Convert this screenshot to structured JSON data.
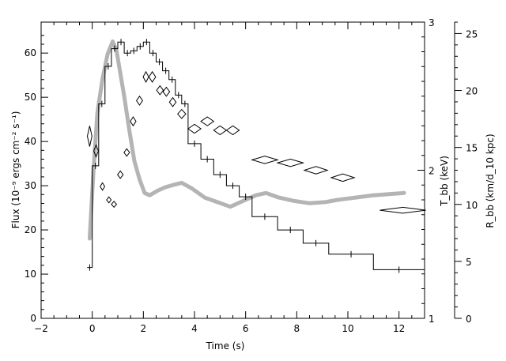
{
  "chart_data": {
    "type": "line",
    "title": "",
    "xlabel": "Time (s)",
    "ylabel": "Flux (10⁻⁹ ergs cm⁻² s⁻¹)",
    "ylabel_right_inner": "T_bb (keV)",
    "ylabel_right_outer": "R_bb (km/d_10 kpc)",
    "xlim": [
      -2,
      13
    ],
    "ylim": [
      0,
      67
    ],
    "y2lim": [
      1,
      3
    ],
    "y3lim": [
      0,
      26
    ],
    "x_ticks": [
      "−2",
      "0",
      "2",
      "4",
      "6",
      "8",
      "10",
      "12"
    ],
    "y_ticks": [
      "0",
      "10",
      "20",
      "30",
      "40",
      "50",
      "60"
    ],
    "y2_ticks": [
      "1",
      "2",
      "3"
    ],
    "y3_ticks": [
      "0",
      "5",
      "10",
      "15",
      "20",
      "25"
    ],
    "grid": false,
    "series": [
      {
        "style": "histogram-step",
        "axis": "flux",
        "color": "#000000",
        "points": [
          {
            "x": -0.2,
            "x_end": 0.0,
            "y": 11.5
          },
          {
            "x": 0.0,
            "x_end": 0.25,
            "y": 34.5
          },
          {
            "x": 0.25,
            "x_end": 0.5,
            "y": 48.5
          },
          {
            "x": 0.5,
            "x_end": 0.75,
            "y": 57.0
          },
          {
            "x": 0.75,
            "x_end": 1.0,
            "y": 61.0
          },
          {
            "x": 1.0,
            "x_end": 1.25,
            "y": 62.5
          },
          {
            "x": 1.25,
            "x_end": 1.5,
            "y": 60.0
          },
          {
            "x": 1.5,
            "x_end": 1.75,
            "y": 60.5
          },
          {
            "x": 1.75,
            "x_end": 2.0,
            "y": 61.5
          },
          {
            "x": 2.0,
            "x_end": 2.25,
            "y": 62.5
          },
          {
            "x": 2.25,
            "x_end": 2.5,
            "y": 60.0
          },
          {
            "x": 2.5,
            "x_end": 2.75,
            "y": 58.0
          },
          {
            "x": 2.75,
            "x_end": 3.0,
            "y": 56.0
          },
          {
            "x": 3.0,
            "x_end": 3.25,
            "y": 54.0
          },
          {
            "x": 3.25,
            "x_end": 3.5,
            "y": 50.5
          },
          {
            "x": 3.5,
            "x_end": 3.75,
            "y": 48.5
          },
          {
            "x": 3.75,
            "x_end": 4.25,
            "y": 39.5
          },
          {
            "x": 4.25,
            "x_end": 4.75,
            "y": 36.0
          },
          {
            "x": 4.75,
            "x_end": 5.25,
            "y": 32.5
          },
          {
            "x": 5.25,
            "x_end": 5.75,
            "y": 30.0
          },
          {
            "x": 5.75,
            "x_end": 6.25,
            "y": 27.5
          },
          {
            "x": 6.25,
            "x_end": 7.25,
            "y": 23.0
          },
          {
            "x": 7.25,
            "x_end": 8.25,
            "y": 20.0
          },
          {
            "x": 8.25,
            "x_end": 9.25,
            "y": 17.0
          },
          {
            "x": 9.25,
            "x_end": 11.0,
            "y": 14.5
          },
          {
            "x": 11.0,
            "x_end": 13.0,
            "y": 11.0
          }
        ]
      },
      {
        "style": "thick-gray-band",
        "axis": "radius",
        "color": "#b4b4b4",
        "points": [
          [
            -0.1,
            7
          ],
          [
            0.05,
            13
          ],
          [
            0.2,
            18
          ],
          [
            0.4,
            21
          ],
          [
            0.6,
            23.2
          ],
          [
            0.8,
            24.3
          ],
          [
            0.95,
            23.5
          ],
          [
            1.1,
            21.5
          ],
          [
            1.25,
            19.5
          ],
          [
            1.45,
            16.5
          ],
          [
            1.65,
            13.8
          ],
          [
            1.85,
            12.2
          ],
          [
            2.05,
            11.0
          ],
          [
            2.25,
            10.8
          ],
          [
            2.55,
            11.2
          ],
          [
            2.85,
            11.5
          ],
          [
            3.15,
            11.7
          ],
          [
            3.5,
            11.9
          ],
          [
            3.9,
            11.4
          ],
          [
            4.4,
            10.6
          ],
          [
            4.9,
            10.2
          ],
          [
            5.4,
            9.8
          ],
          [
            5.9,
            10.3
          ],
          [
            6.4,
            10.8
          ],
          [
            6.8,
            11.0
          ],
          [
            7.3,
            10.6
          ],
          [
            7.9,
            10.3
          ],
          [
            8.5,
            10.1
          ],
          [
            9.1,
            10.2
          ],
          [
            9.6,
            10.4
          ],
          [
            10.3,
            10.6
          ],
          [
            11.0,
            10.8
          ],
          [
            11.6,
            10.9
          ],
          [
            12.2,
            11.0
          ]
        ]
      },
      {
        "style": "diamond-markers",
        "axis": "temperature",
        "color": "#000000",
        "points": [
          {
            "x": -0.1,
            "y": 2.23,
            "dx": 0.09,
            "dy": 0.07
          },
          {
            "x": 0.15,
            "y": 2.13,
            "dx": 0.09,
            "dy": 0.04
          },
          {
            "x": 0.4,
            "y": 1.89,
            "dx": 0.09,
            "dy": 0.025
          },
          {
            "x": 0.65,
            "y": 1.8,
            "dx": 0.09,
            "dy": 0.02
          },
          {
            "x": 0.85,
            "y": 1.77,
            "dx": 0.1,
            "dy": 0.02
          },
          {
            "x": 1.1,
            "y": 1.97,
            "dx": 0.11,
            "dy": 0.025
          },
          {
            "x": 1.35,
            "y": 2.12,
            "dx": 0.11,
            "dy": 0.025
          },
          {
            "x": 1.6,
            "y": 2.33,
            "dx": 0.11,
            "dy": 0.03
          },
          {
            "x": 1.85,
            "y": 2.47,
            "dx": 0.12,
            "dy": 0.03
          },
          {
            "x": 2.1,
            "y": 2.63,
            "dx": 0.11,
            "dy": 0.035
          },
          {
            "x": 2.35,
            "y": 2.63,
            "dx": 0.13,
            "dy": 0.035
          },
          {
            "x": 2.65,
            "y": 2.54,
            "dx": 0.13,
            "dy": 0.03
          },
          {
            "x": 2.9,
            "y": 2.53,
            "dx": 0.13,
            "dy": 0.03
          },
          {
            "x": 3.15,
            "y": 2.46,
            "dx": 0.13,
            "dy": 0.03
          },
          {
            "x": 3.5,
            "y": 2.38,
            "dx": 0.16,
            "dy": 0.03
          },
          {
            "x": 4.0,
            "y": 2.28,
            "dx": 0.25,
            "dy": 0.03
          },
          {
            "x": 4.5,
            "y": 2.33,
            "dx": 0.25,
            "dy": 0.03
          },
          {
            "x": 5.0,
            "y": 2.27,
            "dx": 0.25,
            "dy": 0.03
          },
          {
            "x": 5.5,
            "y": 2.27,
            "dx": 0.25,
            "dy": 0.03
          },
          {
            "x": 6.75,
            "y": 2.07,
            "dx": 0.5,
            "dy": 0.025
          },
          {
            "x": 7.75,
            "y": 2.05,
            "dx": 0.5,
            "dy": 0.025
          },
          {
            "x": 8.75,
            "y": 2.0,
            "dx": 0.45,
            "dy": 0.025
          },
          {
            "x": 9.8,
            "y": 1.95,
            "dx": 0.45,
            "dy": 0.025
          },
          {
            "x": 12.15,
            "y": 1.73,
            "dx": 0.9,
            "dy": 0.02
          }
        ]
      }
    ]
  }
}
